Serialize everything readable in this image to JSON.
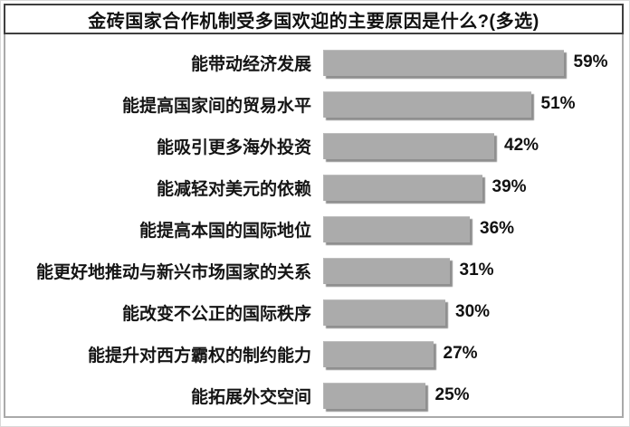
{
  "header": {
    "title": "金砖国家合作机制受多国欢迎的主要原因是什么?(多选)"
  },
  "chart_data": {
    "type": "bar",
    "orientation": "horizontal",
    "title": "金砖国家合作机制受多国欢迎的主要原因是什么?(多选)",
    "categories": [
      "能带动经济发展",
      "能提高国家间的贸易水平",
      "能吸引更多海外投资",
      "能减轻对美元的依赖",
      "能提高本国的国际地位",
      "能更好地推动与新兴市场国家的关系",
      "能改变不公正的国际秩序",
      "能提升对西方霸权的制约能力",
      "能拓展外交空间"
    ],
    "values": [
      59,
      51,
      42,
      39,
      36,
      31,
      30,
      27,
      25
    ],
    "value_labels": [
      "59%",
      "51%",
      "42%",
      "39%",
      "36%",
      "31%",
      "30%",
      "27%",
      "25%"
    ],
    "unit": "%",
    "xlim": [
      0,
      62
    ],
    "grid": false,
    "legend": false,
    "bar_color": "#ababab",
    "bar_shadow_color": "#8f8f8f",
    "text_color": "#111111",
    "frame_color": "#a9a9a9",
    "title_border_color": "#3f3f3f"
  }
}
